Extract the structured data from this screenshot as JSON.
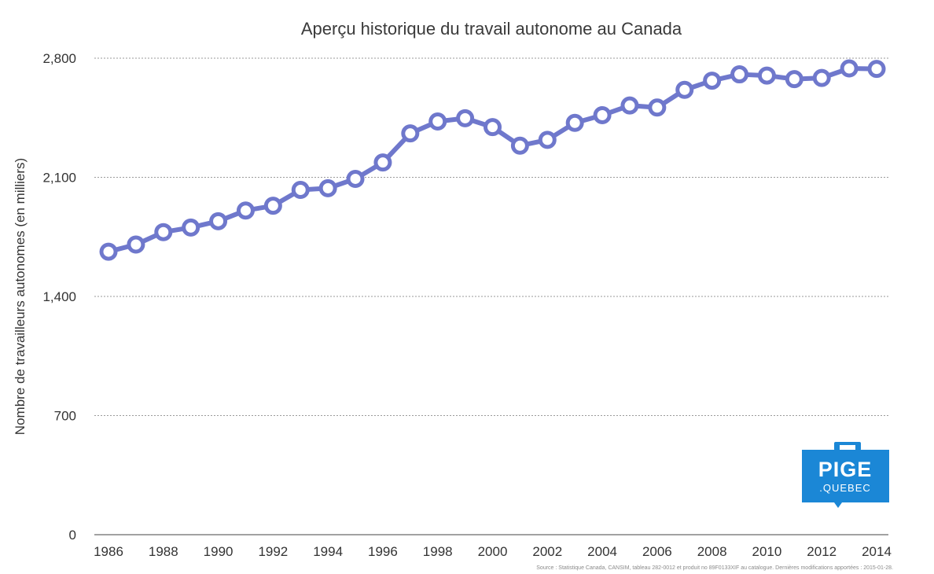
{
  "chart_data": {
    "type": "line",
    "title": "Aperçu historique du travail autonome au Canada",
    "xlabel": "",
    "ylabel": "Nombre de travailleurs autonomes (en milliers)",
    "x": [
      1986,
      1987,
      1988,
      1989,
      1990,
      1991,
      1992,
      1993,
      1994,
      1995,
      1996,
      1997,
      1998,
      1999,
      2000,
      2001,
      2002,
      2003,
      2004,
      2005,
      2006,
      2007,
      2008,
      2009,
      2010,
      2011,
      2012,
      2013,
      2014
    ],
    "x_tick_labels": [
      "1986",
      "1988",
      "1990",
      "1992",
      "1994",
      "1996",
      "1998",
      "2000",
      "2002",
      "2004",
      "2006",
      "2008",
      "2010",
      "2012",
      "2014"
    ],
    "series": [
      {
        "values": [
          1663,
          1705,
          1778,
          1805,
          1842,
          1905,
          1933,
          2026,
          2036,
          2091,
          2187,
          2358,
          2428,
          2447,
          2395,
          2286,
          2320,
          2420,
          2465,
          2522,
          2510,
          2614,
          2668,
          2705,
          2698,
          2677,
          2684,
          2740,
          2737
        ]
      }
    ],
    "ylim": [
      0,
      2800
    ],
    "y_ticks": [
      0,
      700,
      1400,
      2100,
      2800
    ],
    "y_tick_labels": [
      "0",
      "700",
      "1,400",
      "2,100",
      "2,800"
    ],
    "grid": true,
    "colors": {
      "series": "#6f78cc",
      "logo": "#1b87d6"
    },
    "source": "Source : Statistique Canada, CANSIM, tableau 282-0012 et produit no 89F0133XIF au catalogue. Dernières modifications apportées : 2015-01-28.",
    "logo": {
      "line1": "PIGE",
      "line2": ".QUEBEC",
      "icon": "briefcase-icon"
    }
  }
}
